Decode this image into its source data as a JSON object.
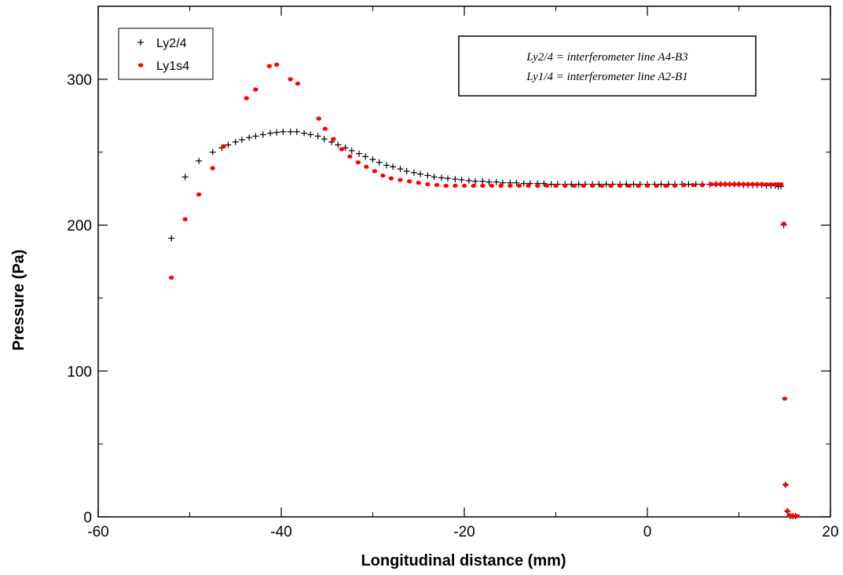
{
  "chart_data": {
    "type": "scatter",
    "title": "",
    "xlabel": "Longitudinal distance (mm)",
    "ylabel": "Pressure (Pa)",
    "xlim": [
      -60,
      20
    ],
    "ylim": [
      0,
      350
    ],
    "x_ticks": [
      -60,
      -40,
      -20,
      0,
      20
    ],
    "y_ticks": [
      0,
      100,
      200,
      300
    ],
    "grid": false,
    "legend_position": "top-left",
    "annotation_lines": [
      "Ly2/4 = interferometer line A4-B3",
      "Ly1/4 = interferometer line A2-B1"
    ],
    "series": [
      {
        "name": "Ly2/4",
        "marker": "plus",
        "color": "#000000",
        "points": [
          [
            -52,
            191
          ],
          [
            -50.5,
            233
          ],
          [
            -49,
            244
          ],
          [
            -47.5,
            250
          ],
          [
            -46.5,
            253
          ],
          [
            -45.8,
            255
          ],
          [
            -45,
            257
          ],
          [
            -44.3,
            258.5
          ],
          [
            -43.5,
            260
          ],
          [
            -42.8,
            261
          ],
          [
            -42,
            262
          ],
          [
            -41.2,
            263
          ],
          [
            -40.5,
            263.5
          ],
          [
            -39.8,
            264
          ],
          [
            -39,
            264
          ],
          [
            -38.3,
            264
          ],
          [
            -37.5,
            263
          ],
          [
            -36.8,
            262
          ],
          [
            -36,
            261
          ],
          [
            -35.3,
            259
          ],
          [
            -34.5,
            257
          ],
          [
            -33.8,
            255
          ],
          [
            -33,
            253
          ],
          [
            -32.3,
            251
          ],
          [
            -31.5,
            249
          ],
          [
            -30.8,
            247
          ],
          [
            -30,
            245
          ],
          [
            -29.3,
            243
          ],
          [
            -28.5,
            241
          ],
          [
            -27.8,
            240
          ],
          [
            -27,
            238.5
          ],
          [
            -26.3,
            237
          ],
          [
            -25.5,
            236
          ],
          [
            -24.8,
            235
          ],
          [
            -24,
            234
          ],
          [
            -23.3,
            233
          ],
          [
            -22.5,
            232.5
          ],
          [
            -21.8,
            232
          ],
          [
            -21,
            231.5
          ],
          [
            -20.3,
            231
          ],
          [
            -19.5,
            230.5
          ],
          [
            -18.8,
            230
          ],
          [
            -18,
            230
          ],
          [
            -17.3,
            229.5
          ],
          [
            -16.5,
            229.5
          ],
          [
            -15.8,
            229
          ],
          [
            -15,
            229
          ],
          [
            -14.3,
            229
          ],
          [
            -13.5,
            228.5
          ],
          [
            -12.8,
            228.5
          ],
          [
            -12,
            228.5
          ],
          [
            -11.3,
            228.5
          ],
          [
            -10.5,
            228
          ],
          [
            -9.8,
            228
          ],
          [
            -9,
            228
          ],
          [
            -8.3,
            228
          ],
          [
            -7.5,
            228
          ],
          [
            -6.8,
            228
          ],
          [
            -6,
            228
          ],
          [
            -5.3,
            228
          ],
          [
            -4.5,
            228
          ],
          [
            -3.8,
            228
          ],
          [
            -3,
            228
          ],
          [
            -2.3,
            228
          ],
          [
            -1.5,
            228
          ],
          [
            -0.8,
            228
          ],
          [
            0,
            228
          ],
          [
            0.8,
            228
          ],
          [
            1.5,
            228
          ],
          [
            2.3,
            228
          ],
          [
            3,
            228
          ],
          [
            3.8,
            228
          ],
          [
            4.5,
            228
          ],
          [
            5.3,
            228
          ],
          [
            6,
            228
          ],
          [
            6.8,
            228
          ],
          [
            7.5,
            228
          ],
          [
            8,
            228
          ],
          [
            8.5,
            228
          ],
          [
            9,
            228
          ],
          [
            9.5,
            228
          ],
          [
            10,
            228
          ],
          [
            10.5,
            227.5
          ],
          [
            11,
            227.5
          ],
          [
            11.5,
            227.5
          ],
          [
            12,
            227.5
          ],
          [
            12.5,
            227.5
          ],
          [
            13,
            227
          ],
          [
            13.5,
            227
          ],
          [
            14,
            227
          ],
          [
            14.3,
            226.5
          ],
          [
            14.6,
            226.5
          ],
          [
            14.9,
            200
          ],
          [
            15.1,
            22
          ],
          [
            15.3,
            4
          ],
          [
            15.6,
            0.5
          ],
          [
            15.9,
            0.5
          ],
          [
            16.2,
            0.5
          ]
        ]
      },
      {
        "name": "Ly1s4",
        "marker": "dot",
        "color": "#ff0000",
        "points": [
          [
            -52,
            164
          ],
          [
            -50.5,
            204
          ],
          [
            -49,
            221
          ],
          [
            -47.5,
            239
          ],
          [
            -46.3,
            254
          ],
          [
            -43.8,
            287
          ],
          [
            -42.8,
            293
          ],
          [
            -41.3,
            309
          ],
          [
            -40.5,
            310
          ],
          [
            -39,
            300
          ],
          [
            -38.2,
            297
          ],
          [
            -35.9,
            273
          ],
          [
            -35.2,
            266
          ],
          [
            -34.3,
            259
          ],
          [
            -33.4,
            252
          ],
          [
            -32.5,
            247
          ],
          [
            -31.6,
            243
          ],
          [
            -30.7,
            240
          ],
          [
            -29.8,
            237
          ],
          [
            -28.9,
            234
          ],
          [
            -28,
            232
          ],
          [
            -27,
            231
          ],
          [
            -26,
            230
          ],
          [
            -25,
            229
          ],
          [
            -24,
            228
          ],
          [
            -23,
            227.5
          ],
          [
            -22,
            227
          ],
          [
            -21,
            227
          ],
          [
            -20,
            227
          ],
          [
            -19,
            227
          ],
          [
            -18,
            227
          ],
          [
            -17,
            227
          ],
          [
            -16,
            227
          ],
          [
            -15,
            227
          ],
          [
            -14,
            227
          ],
          [
            -13,
            227
          ],
          [
            -12,
            227
          ],
          [
            -11,
            227
          ],
          [
            -10,
            227
          ],
          [
            -9,
            227
          ],
          [
            -8,
            227
          ],
          [
            -7,
            227
          ],
          [
            -6,
            227
          ],
          [
            -5,
            227
          ],
          [
            -4,
            227
          ],
          [
            -3,
            227
          ],
          [
            -2,
            227
          ],
          [
            -1,
            227
          ],
          [
            0,
            227
          ],
          [
            1,
            227
          ],
          [
            2,
            227
          ],
          [
            3,
            227
          ],
          [
            4,
            227.5
          ],
          [
            5,
            227.5
          ],
          [
            6,
            227.5
          ],
          [
            7,
            228
          ],
          [
            7.5,
            228
          ],
          [
            8,
            228
          ],
          [
            8.5,
            228
          ],
          [
            9,
            228
          ],
          [
            9.5,
            228
          ],
          [
            10,
            228
          ],
          [
            10.5,
            228
          ],
          [
            11,
            228
          ],
          [
            11.5,
            228
          ],
          [
            12,
            228
          ],
          [
            12.5,
            228
          ],
          [
            13,
            228
          ],
          [
            13.5,
            228
          ],
          [
            14,
            228
          ],
          [
            14.3,
            228
          ],
          [
            14.6,
            228
          ],
          [
            14.9,
            201
          ],
          [
            15,
            81
          ],
          [
            15.1,
            22
          ],
          [
            15.3,
            4
          ],
          [
            15.5,
            1
          ],
          [
            15.8,
            0.5
          ],
          [
            16.1,
            0.5
          ],
          [
            16.4,
            0.5
          ]
        ]
      }
    ]
  }
}
